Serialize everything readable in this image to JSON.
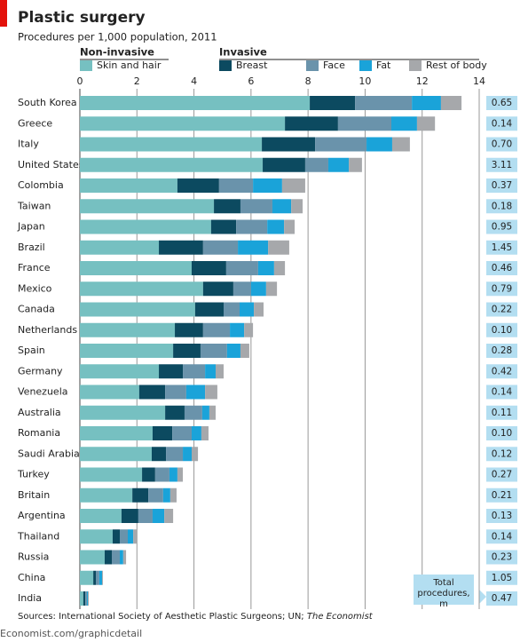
{
  "chart_data": {
    "type": "stacked-bar-horizontal",
    "title": "Plastic surgery",
    "subtitle": "Procedures per 1,000 population, 2011",
    "legend_groups": [
      {
        "name": "Non-invasive",
        "series": [
          0
        ]
      },
      {
        "name": "Invasive",
        "series": [
          1,
          2,
          3,
          4
        ]
      }
    ],
    "categories": [
      "South Korea",
      "Greece",
      "Italy",
      "United States",
      "Colombia",
      "Taiwan",
      "Japan",
      "Brazil",
      "France",
      "Mexico",
      "Canada",
      "Netherlands",
      "Spain",
      "Germany",
      "Venezuela",
      "Australia",
      "Romania",
      "Saudi Arabia",
      "Turkey",
      "Britain",
      "Argentina",
      "Thailand",
      "Russia",
      "China",
      "India"
    ],
    "series": [
      {
        "name": "Skin and hair",
        "color": "#76c0c1",
        "values": [
          8.06,
          7.19,
          6.38,
          6.41,
          3.42,
          4.7,
          4.6,
          2.77,
          3.92,
          4.32,
          4.04,
          3.33,
          3.27,
          2.77,
          2.08,
          2.99,
          2.55,
          2.52,
          2.18,
          1.84,
          1.46,
          1.15,
          0.87,
          0.47,
          0.12
        ]
      },
      {
        "name": "Breast",
        "color": "#0c4a60",
        "values": [
          1.59,
          1.86,
          1.87,
          1.49,
          1.46,
          0.93,
          0.88,
          1.55,
          1.21,
          1.06,
          1.0,
          0.99,
          0.96,
          0.84,
          0.91,
          0.68,
          0.69,
          0.5,
          0.46,
          0.56,
          0.59,
          0.25,
          0.25,
          0.09,
          0.07
        ]
      },
      {
        "name": "Face",
        "color": "#6a93ab",
        "values": [
          1.99,
          1.87,
          1.8,
          0.81,
          1.19,
          1.12,
          1.09,
          1.22,
          1.12,
          0.62,
          0.56,
          0.94,
          0.93,
          0.78,
          0.74,
          0.62,
          0.68,
          0.59,
          0.5,
          0.52,
          0.5,
          0.28,
          0.28,
          0.12,
          0.06
        ]
      },
      {
        "name": "Fat",
        "color": "#1aa3d9",
        "values": [
          1.02,
          0.9,
          0.9,
          0.72,
          1.02,
          0.66,
          0.59,
          1.06,
          0.56,
          0.53,
          0.5,
          0.5,
          0.47,
          0.37,
          0.66,
          0.25,
          0.34,
          0.31,
          0.28,
          0.25,
          0.41,
          0.19,
          0.12,
          0.1,
          0.03
        ]
      },
      {
        "name": "Rest of body",
        "color": "#a6a8ab",
        "values": [
          0.72,
          0.63,
          0.62,
          0.46,
          0.81,
          0.4,
          0.37,
          0.74,
          0.38,
          0.38,
          0.34,
          0.31,
          0.31,
          0.28,
          0.43,
          0.22,
          0.25,
          0.22,
          0.19,
          0.22,
          0.31,
          0.12,
          0.1,
          0.03,
          0.03
        ]
      }
    ],
    "totals": {
      "label": "Total procedures, m",
      "values": [
        0.65,
        0.14,
        0.7,
        3.11,
        0.37,
        0.18,
        0.95,
        1.45,
        0.46,
        0.79,
        0.22,
        0.1,
        0.28,
        0.42,
        0.14,
        0.11,
        0.1,
        0.12,
        0.27,
        0.21,
        0.13,
        0.14,
        0.23,
        1.05,
        0.47
      ],
      "value_labels": [
        "0.65",
        "0.14",
        "0.70",
        "3.11",
        "0.37",
        "0.18",
        "0.95",
        "1.45",
        "0.46",
        "0.79",
        "0.22",
        "0.10",
        "0.28",
        "0.42",
        "0.14",
        "0.11",
        "0.10",
        "0.12",
        "0.27",
        "0.21",
        "0.13",
        "0.14",
        "0.23",
        "1.05",
        "0.47"
      ]
    },
    "xlim": [
      0,
      14
    ],
    "xticks": [
      0,
      2,
      4,
      6,
      8,
      10,
      12,
      14
    ],
    "grid": true,
    "source": "Sources: International Society of Aesthetic Plastic Surgeons; UN;",
    "source_italic": "The Economist",
    "footer": "Economist.com/graphicdetail"
  }
}
